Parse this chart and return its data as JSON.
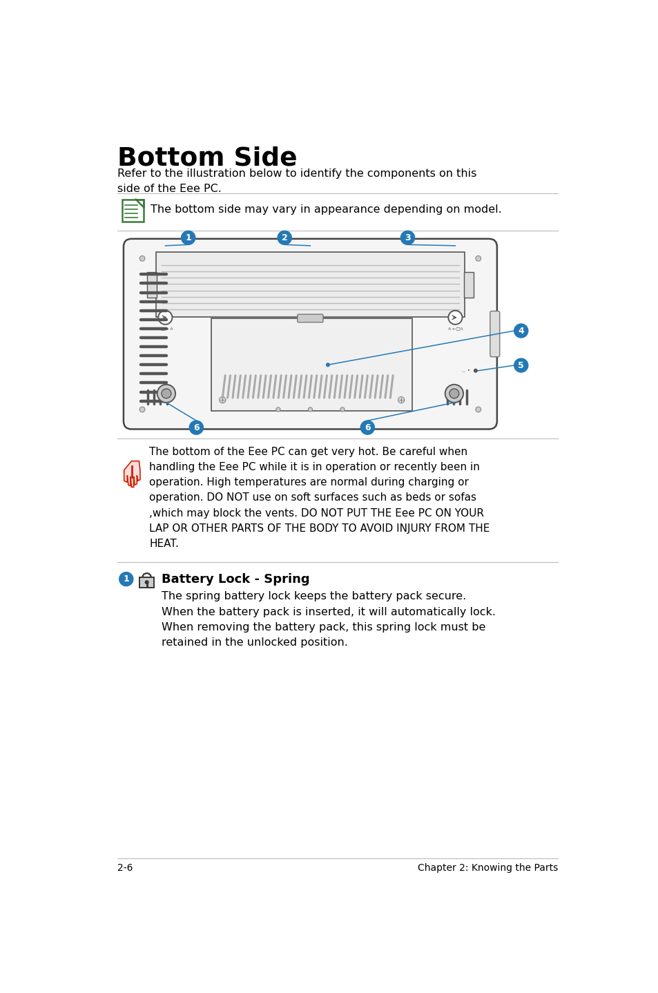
{
  "title": "Bottom Side",
  "subtitle": "Refer to the illustration below to identify the components on this\nside of the Eee PC.",
  "note_text": "The bottom side may vary in appearance depending on model.",
  "warning_text": "The bottom of the Eee PC can get very hot. Be careful when\nhandling the Eee PC while it is in operation or recently been in\noperation. High temperatures are normal during charging or\noperation. DO NOT use on soft surfaces such as beds or sofas\n,which may block the vents. DO NOT PUT THE Eee PC ON YOUR\nLAP OR OTHER PARTS OF THE BODY TO AVOID INJURY FROM THE\nHEAT.",
  "section1_title": "Battery Lock - Spring",
  "section1_text": "The spring battery lock keeps the battery pack secure.\nWhen the battery pack is inserted, it will automatically lock.\nWhen removing the battery pack, this spring lock must be\nretained in the unlocked position.",
  "footer_left": "2-6",
  "footer_right": "Chapter 2: Knowing the Parts",
  "bg_color": "#ffffff",
  "text_color": "#000000",
  "blue_color": "#2479b5",
  "green_color": "#3a7a3a",
  "red_color": "#cc2200",
  "line_color": "#bbbbbb"
}
